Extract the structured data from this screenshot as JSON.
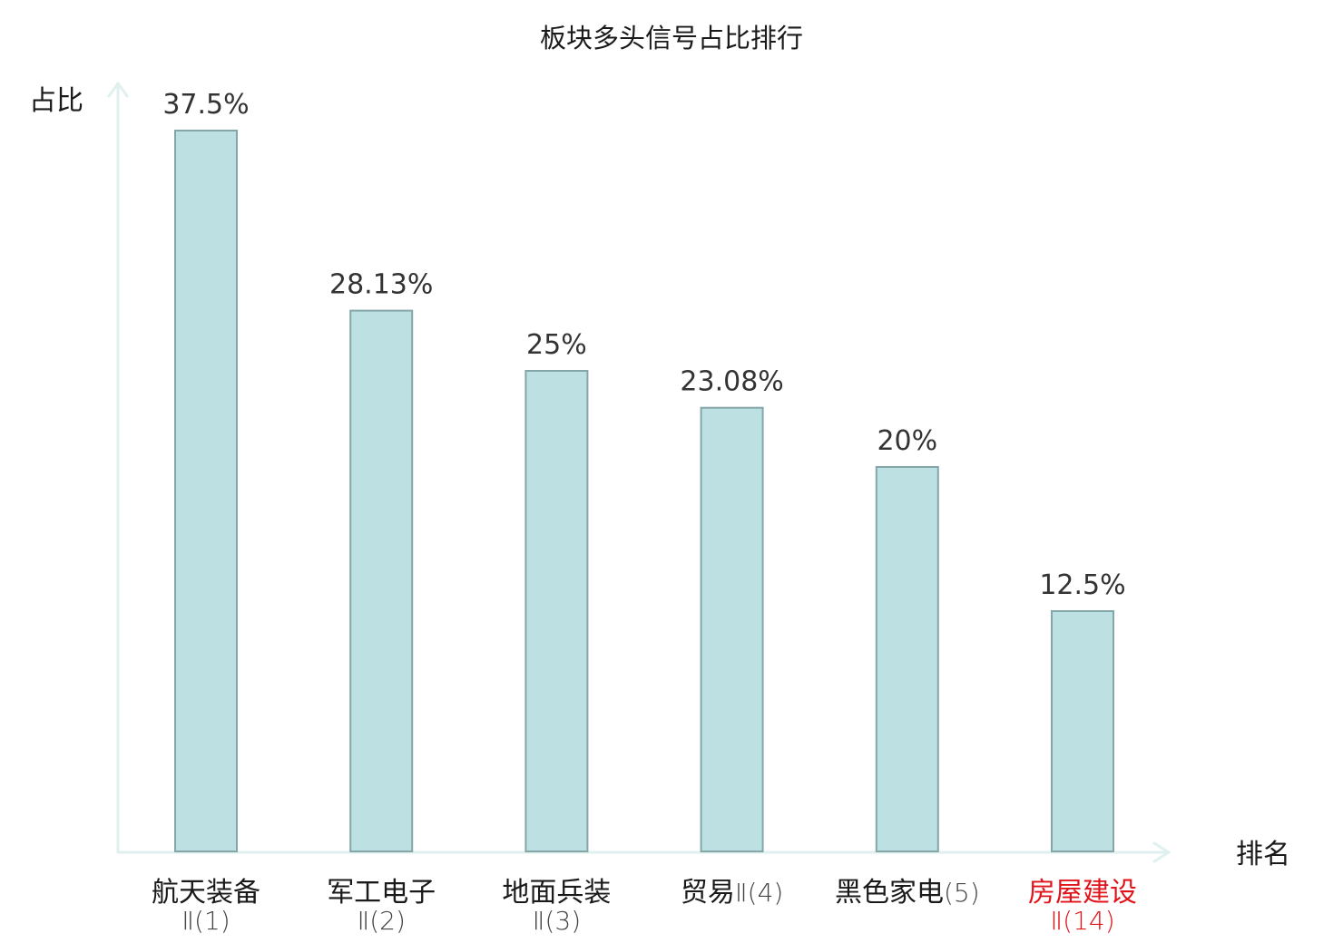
{
  "chart_data": {
    "type": "bar",
    "title": "板块多头信号占比排行",
    "xlabel": "排名",
    "ylabel": "占比",
    "ylim": [
      0,
      37.5
    ],
    "value_suffix": "%",
    "grid": false,
    "legend": "none",
    "categories": [
      {
        "name": "航天装备",
        "suffix": "Ⅱ(1)",
        "highlight": false
      },
      {
        "name": "军工电子",
        "suffix": "Ⅱ(2)",
        "highlight": false
      },
      {
        "name": "地面兵装",
        "suffix": "Ⅱ(3)",
        "highlight": false
      },
      {
        "name": "贸易",
        "suffix": "Ⅱ(4)",
        "highlight": false
      },
      {
        "name": "黑色家电",
        "suffix": "(5)",
        "highlight": false
      },
      {
        "name": "房屋建设",
        "suffix": "Ⅱ(14)",
        "highlight": true
      }
    ],
    "values": [
      37.5,
      28.13,
      25,
      23.08,
      20,
      12.5
    ],
    "value_labels": [
      "37.5%",
      "28.13%",
      "25%",
      "23.08%",
      "20%",
      "12.5%"
    ]
  },
  "colors": {
    "bar_fill": "#bde0e2",
    "bar_stroke": "#85a6a8",
    "axis": "#dff0ee",
    "text": "#1a1a1a",
    "value_text": "#333333",
    "suffix_text": "#444444",
    "highlight": "#e0141a"
  }
}
